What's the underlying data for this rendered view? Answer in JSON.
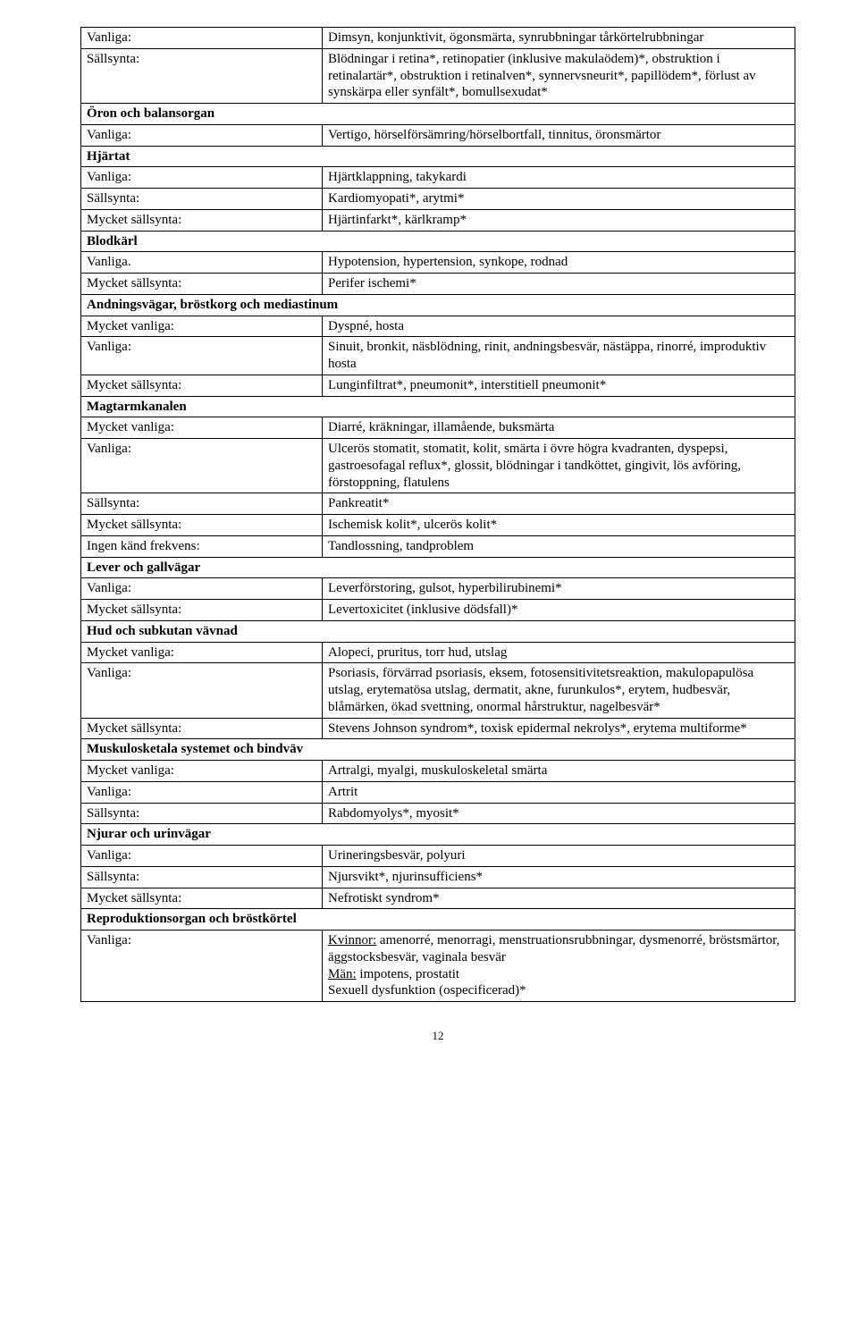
{
  "pageNumber": "12",
  "colors": {
    "background": "#ffffff",
    "text": "#000000",
    "border": "#000000"
  },
  "table": {
    "col1_width": 270,
    "rows": [
      {
        "label": "Vanliga:",
        "value": "Dimsyn, konjunktivit, ögonsmärta, synrubbningar tårkörtelrubbningar"
      },
      {
        "label": "Sällsynta:",
        "value": "Blödningar i retina*, retinopatier (inklusive makulaödem)*, obstruktion i retinalartär*, obstruktion i retinalven*, synnervsneurit*, papillödem*, förlust av synskärpa eller synfält*, bomullsexudat*"
      },
      {
        "header": true,
        "text": "Öron och balansorgan"
      },
      {
        "label": "Vanliga:",
        "value": "Vertigo, hörselförsämring/hörselbortfall, tinnitus, öronsmärtor"
      },
      {
        "header": true,
        "text": "Hjärtat"
      },
      {
        "label": "Vanliga:",
        "value": "Hjärtklappning, takykardi"
      },
      {
        "label": "Sällsynta:",
        "value": "Kardiomyopati*, arytmi*"
      },
      {
        "label": "Mycket sällsynta:",
        "value": "Hjärtinfarkt*, kärlkramp*"
      },
      {
        "header": true,
        "text": "Blodkärl"
      },
      {
        "label": "Vanliga.",
        "value": "Hypotension, hypertension, synkope, rodnad"
      },
      {
        "label": "Mycket sällsynta:",
        "value": "Perifer ischemi*"
      },
      {
        "header": true,
        "text": "Andningsvägar, bröstkorg och mediastinum"
      },
      {
        "label": "Mycket vanliga:",
        "value": "Dyspné, hosta"
      },
      {
        "label": "Vanliga:",
        "value": "Sinuit, bronkit, näsblödning, rinit, andningsbesvär, nästäppa, rinorré, improduktiv hosta"
      },
      {
        "label": "Mycket sällsynta:",
        "value": "Lunginfiltrat*, pneumonit*, interstitiell pneumonit*"
      },
      {
        "header": true,
        "text": "Magtarmkanalen"
      },
      {
        "label": "Mycket vanliga:",
        "value": "Diarré, kräkningar, illamående, buksmärta"
      },
      {
        "label": "Vanliga:",
        "value": "Ulcerös stomatit, stomatit, kolit, smärta i övre högra kvadranten, dyspepsi, gastroesofagal reflux*, glossit, blödningar i tandköttet, gingivit, lös avföring, förstoppning, flatulens"
      },
      {
        "label": "Sällsynta:",
        "value": "Pankreatit*"
      },
      {
        "label": "Mycket sällsynta:",
        "value": "Ischemisk kolit*, ulcerös kolit*"
      },
      {
        "label": "Ingen känd frekvens:",
        "value": "Tandlossning, tandproblem"
      },
      {
        "header": true,
        "text": "Lever och gallvägar"
      },
      {
        "label": "Vanliga:",
        "value": "Leverförstoring, gulsot, hyperbilirubinemi*"
      },
      {
        "label": "Mycket sällsynta:",
        "value": "Levertoxicitet (inklusive dödsfall)*"
      },
      {
        "header": true,
        "text": "Hud och subkutan vävnad"
      },
      {
        "label": "Mycket vanliga:",
        "value": "Alopeci, pruritus, torr hud, utslag"
      },
      {
        "label": "Vanliga:",
        "value": "Psoriasis, förvärrad psoriasis, eksem, fotosensitivitetsreaktion, makulopapulösa utslag, erytematösa utslag, dermatit, akne, furunkulos*, erytem, hudbesvär, blåmärken, ökad svettning, onormal hårstruktur, nagelbesvär*"
      },
      {
        "label": "Mycket sällsynta:",
        "value": "Stevens Johnson syndrom*, toxisk epidermal nekrolys*, erytema multiforme*"
      },
      {
        "header": true,
        "text": "Muskulosketala systemet och bindväv"
      },
      {
        "label": "Mycket vanliga:",
        "value": "Artralgi, myalgi, muskuloskeletal smärta"
      },
      {
        "label": "Vanliga:",
        "value": "Artrit"
      },
      {
        "label": "Sällsynta:",
        "value": "Rabdomyolys*, myosit*"
      },
      {
        "header": true,
        "text": "Njurar och urinvägar"
      },
      {
        "label": "Vanliga:",
        "value": "Urineringsbesvär, polyuri"
      },
      {
        "label": "Sällsynta:",
        "value": "Njursvikt*, njurinsufficiens*"
      },
      {
        "label": "Mycket sällsynta:",
        "value": "Nefrotiskt syndrom*"
      },
      {
        "header": true,
        "text": "Reproduktionsorgan och bröstkörtel"
      },
      {
        "label": "Vanliga:",
        "special": "repro"
      }
    ]
  },
  "repro": {
    "kvinnor_label": "Kvinnor:",
    "kvinnor_value": " amenorré, menorragi, menstruationsrubbningar, dysmenorré, bröstsmärtor, äggstocksbesvär, vaginala besvär",
    "man_label": "Män:",
    "man_value": " impotens, prostatit",
    "line3": "Sexuell dysfunktion (ospecificerad)*"
  }
}
